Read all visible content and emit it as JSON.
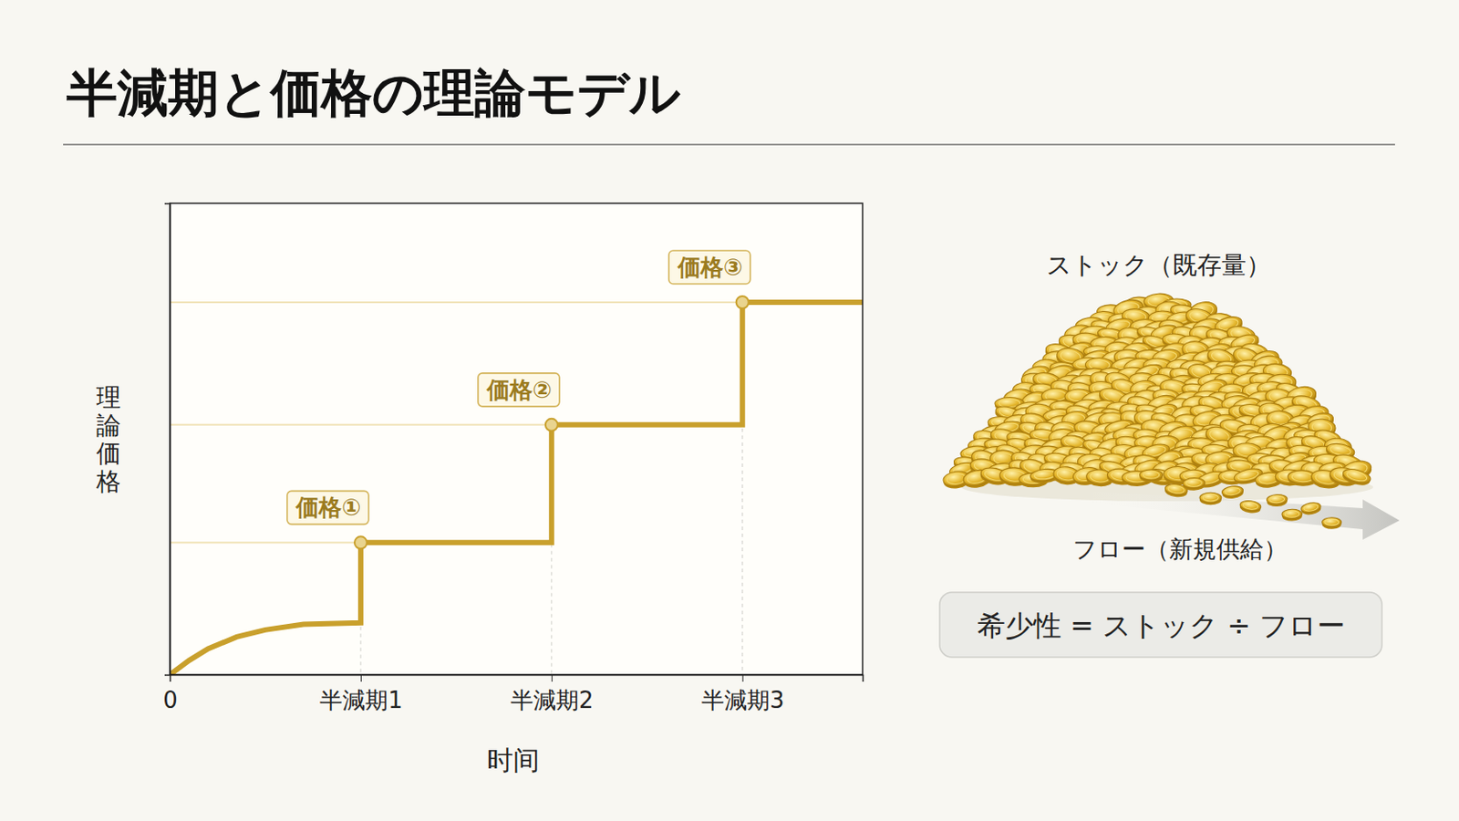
{
  "chart_data": {
    "type": "line",
    "title": "半減期と価格の理論モデル",
    "x_label": "时间",
    "y_label": "理論価格",
    "x": [
      0,
      0.1,
      0.2,
      0.35,
      0.5,
      0.7,
      1,
      1,
      2,
      2,
      3,
      3,
      3.63
    ],
    "series": [
      {
        "values": [
          0,
          3,
          5.5,
          8,
          9.5,
          10.7,
          11,
          28,
          28,
          53,
          53,
          79,
          79
        ],
        "color": "#c9a02c",
        "line_style": "solid"
      }
    ],
    "xlim": [
      0,
      3.63
    ],
    "ylim": [
      0,
      100
    ],
    "xticks": [
      0,
      {
        "value": 1,
        "label": "半減期1"
      },
      {
        "value": 2,
        "label": "半減期2"
      },
      {
        "value": 3,
        "label": "半減期3"
      }
    ],
    "yticks": [],
    "tick_labels": "x",
    "grid": false,
    "annotations": [
      {
        "text": "価格①",
        "x": 1,
        "y": 28
      },
      {
        "text": "価格②",
        "x": 2,
        "y": 53
      },
      {
        "text": "価格③",
        "x": 3,
        "y": 79
      }
    ]
  },
  "illustration": {
    "stock_label": "ストック（既存量）",
    "flow_label": "フロー（新規供給）",
    "formula": "希少性 = ストック ÷ フロー"
  }
}
